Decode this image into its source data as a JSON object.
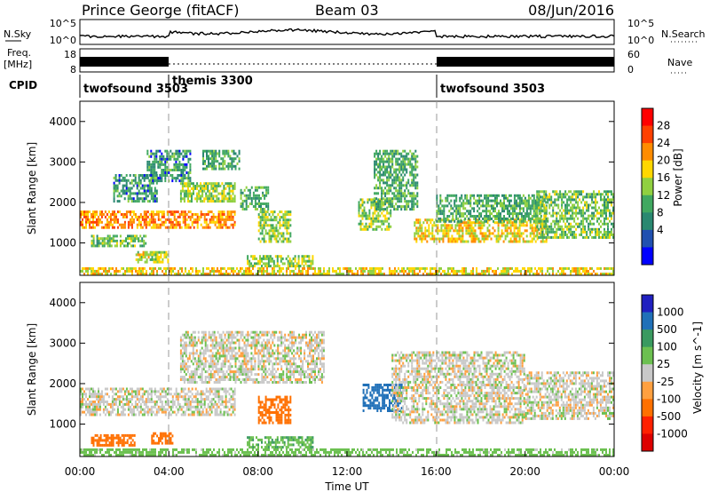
{
  "header": {
    "station": "Prince George (fitACF)",
    "beam": "Beam 03",
    "date": "08/Jun/2016"
  },
  "nsky_panel": {
    "left_label": "N.Sky",
    "right_label": "N.Search",
    "left_ticks": [
      "10^5",
      "10^0"
    ],
    "right_ticks": [
      "10^5",
      "10^0"
    ]
  },
  "freq_panel": {
    "left_label_1": "Freq.",
    "left_label_2": "[MHz]",
    "left_ticks": [
      "18",
      "8"
    ],
    "right_ticks": [
      "60",
      "0"
    ],
    "right_label": "Nave"
  },
  "cpid_panel": {
    "label": "CPID",
    "segments": [
      {
        "name": "twofsound 3503",
        "start_hour": 0
      },
      {
        "name": "themis 3300",
        "start_hour": 4
      },
      {
        "name": "twofsound 3503",
        "start_hour": 16
      }
    ]
  },
  "chart_data": [
    {
      "type": "heatmap",
      "title": "",
      "ylabel": "Slant Range [km]",
      "xlabel": "",
      "ylim": [
        200,
        4500
      ],
      "xlim": [
        0,
        24
      ],
      "y_ticks": [
        "1000",
        "2000",
        "3000",
        "4000"
      ],
      "colorbar_label": "Power [dB]",
      "colorbar_ticks": [
        "28",
        "24",
        "20",
        "16",
        "12",
        "8",
        "4"
      ],
      "colorbar_colors": [
        "#ff0000",
        "#ff4000",
        "#ff8c00",
        "#ffd700",
        "#90d040",
        "#40a860",
        "#2a8870",
        "#2050b0",
        "#0000ff"
      ],
      "regions": [
        {
          "x0": 0.0,
          "x1": 7.0,
          "y0": 1350,
          "y1": 1800,
          "value": 22
        },
        {
          "x0": 0.5,
          "x1": 3.0,
          "y0": 900,
          "y1": 1200,
          "value": 12
        },
        {
          "x0": 2.5,
          "x1": 4.0,
          "y0": 500,
          "y1": 800,
          "value": 16
        },
        {
          "x0": 1.5,
          "x1": 3.5,
          "y0": 2000,
          "y1": 2700,
          "value": 8
        },
        {
          "x0": 3.0,
          "x1": 5.0,
          "y0": 2500,
          "y1": 3300,
          "value": 8
        },
        {
          "x0": 4.5,
          "x1": 7.0,
          "y0": 2000,
          "y1": 2500,
          "value": 14
        },
        {
          "x0": 5.5,
          "x1": 7.2,
          "y0": 2800,
          "y1": 3300,
          "value": 10
        },
        {
          "x0": 7.2,
          "x1": 8.5,
          "y0": 1800,
          "y1": 2400,
          "value": 10
        },
        {
          "x0": 8.0,
          "x1": 9.5,
          "y0": 1000,
          "y1": 1800,
          "value": 14
        },
        {
          "x0": 7.5,
          "x1": 10.5,
          "y0": 400,
          "y1": 700,
          "value": 14
        },
        {
          "x0": 12.5,
          "x1": 14.0,
          "y0": 1300,
          "y1": 2100,
          "value": 14
        },
        {
          "x0": 13.2,
          "x1": 15.2,
          "y0": 1800,
          "y1": 3300,
          "value": 10
        },
        {
          "x0": 15.0,
          "x1": 21.0,
          "y0": 1000,
          "y1": 1600,
          "value": 18
        },
        {
          "x0": 16.0,
          "x1": 21.0,
          "y0": 1500,
          "y1": 2200,
          "value": 10
        },
        {
          "x0": 20.5,
          "x1": 24.0,
          "y0": 1100,
          "y1": 2300,
          "value": 12
        },
        {
          "x0": 0.0,
          "x1": 24.0,
          "y0": 200,
          "y1": 400,
          "value": 18
        }
      ]
    },
    {
      "type": "heatmap",
      "title": "",
      "ylabel": "Slant Range [km]",
      "xlabel": "Time UT",
      "ylim": [
        200,
        4500
      ],
      "xlim": [
        0,
        24
      ],
      "y_ticks": [
        "1000",
        "2000",
        "3000",
        "4000"
      ],
      "x_ticks": [
        "00:00",
        "04:00",
        "08:00",
        "12:00",
        "16:00",
        "20:00",
        "00:00"
      ],
      "colorbar_label": "Velocity [m s^-1]",
      "colorbar_ticks": [
        "1000",
        "500",
        "100",
        "25",
        "-25",
        "-100",
        "-500",
        "-1000"
      ],
      "colorbar_colors": [
        "#2020c0",
        "#2070b8",
        "#3a9a60",
        "#6cc050",
        "#c8c8c8",
        "#ffa040",
        "#ff7000",
        "#ff2000",
        "#dd0000"
      ],
      "regions": [
        {
          "x0": 0.0,
          "x1": 7.0,
          "y0": 1200,
          "y1": 1900,
          "value": 0
        },
        {
          "x0": 4.5,
          "x1": 11.0,
          "y0": 2000,
          "y1": 3300,
          "value": 0
        },
        {
          "x0": 0.5,
          "x1": 2.5,
          "y0": 450,
          "y1": 750,
          "value": -200
        },
        {
          "x0": 3.2,
          "x1": 4.2,
          "y0": 500,
          "y1": 800,
          "value": -200
        },
        {
          "x0": 8.0,
          "x1": 9.5,
          "y0": 1000,
          "y1": 1700,
          "value": -300
        },
        {
          "x0": 7.5,
          "x1": 10.5,
          "y0": 400,
          "y1": 700,
          "value": 80
        },
        {
          "x0": 12.7,
          "x1": 14.5,
          "y0": 1300,
          "y1": 2000,
          "value": 600
        },
        {
          "x0": 14.0,
          "x1": 20.0,
          "y0": 1000,
          "y1": 2800,
          "value": 0
        },
        {
          "x0": 20.0,
          "x1": 24.0,
          "y0": 1100,
          "y1": 2300,
          "value": 0
        },
        {
          "x0": 0.0,
          "x1": 24.0,
          "y0": 200,
          "y1": 400,
          "value": 60
        }
      ]
    }
  ]
}
